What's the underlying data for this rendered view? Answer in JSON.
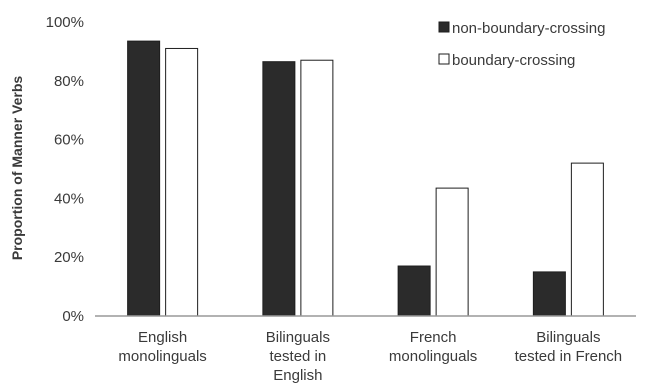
{
  "chart_data": {
    "type": "bar",
    "title": "",
    "xlabel": "",
    "ylabel": "Proportion of Manner Verbs",
    "ylim": [
      0,
      100
    ],
    "yticks": [
      "0%",
      "20%",
      "40%",
      "60%",
      "80%",
      "100%"
    ],
    "grid": false,
    "legend_position": "top-right",
    "categories": [
      [
        "English",
        "monolinguals"
      ],
      [
        "Bilinguals",
        "tested in",
        "English"
      ],
      [
        "French",
        "monolinguals"
      ],
      [
        "Bilinguals",
        "tested in French"
      ]
    ],
    "series": [
      {
        "name": "non-boundary-crossing",
        "values": [
          93.5,
          86.5,
          17,
          15
        ],
        "color": "#2b2b2b"
      },
      {
        "name": "boundary-crossing",
        "values": [
          91,
          87,
          43.5,
          52
        ],
        "color": "#ffffff"
      }
    ],
    "colors": {
      "axis": "#999999",
      "bar_outline": "#1e1e1e",
      "text": "#3a3a3a"
    }
  }
}
